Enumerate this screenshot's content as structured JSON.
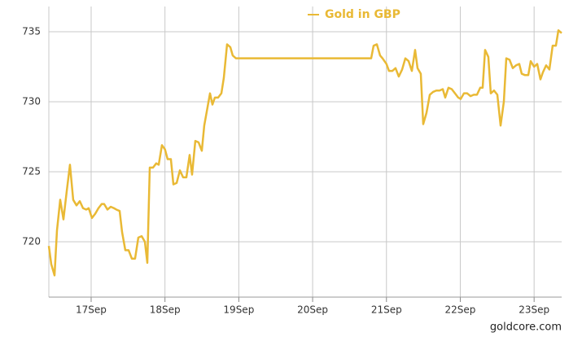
{
  "chart_data": {
    "type": "line",
    "x": [
      16.427,
      16.46,
      16.504,
      16.537,
      16.581,
      16.625,
      16.669,
      16.713,
      16.757,
      16.802,
      16.846,
      16.89,
      16.934,
      16.967,
      17.011,
      17.055,
      17.099,
      17.143,
      17.176,
      17.221,
      17.265,
      17.309,
      17.342,
      17.386,
      17.419,
      17.463,
      17.507,
      17.551,
      17.595,
      17.639,
      17.684,
      17.728,
      17.761,
      17.794,
      17.838,
      17.882,
      17.915,
      17.959,
      18.0,
      18.036,
      18.08,
      18.114,
      18.158,
      18.202,
      18.246,
      18.29,
      18.334,
      18.367,
      18.411,
      18.455,
      18.499,
      18.532,
      18.566,
      18.61,
      18.643,
      18.676,
      18.72,
      18.764,
      18.797,
      18.841,
      18.885,
      18.918,
      18.962,
      19.0,
      20.793,
      20.826,
      20.87,
      20.914,
      20.947,
      21.0,
      21.035,
      21.079,
      21.123,
      21.167,
      21.212,
      21.256,
      21.3,
      21.344,
      21.388,
      21.421,
      21.465,
      21.498,
      21.542,
      21.587,
      21.631,
      21.675,
      21.719,
      21.763,
      21.796,
      21.84,
      21.884,
      21.928,
      21.972,
      22.005,
      22.05,
      22.094,
      22.138,
      22.182,
      22.226,
      22.27,
      22.303,
      22.336,
      22.38,
      22.413,
      22.457,
      22.502,
      22.546,
      22.59,
      22.623,
      22.667,
      22.711,
      22.755,
      22.799,
      22.832,
      22.877,
      22.921,
      22.954,
      23.0,
      23.042,
      23.086,
      23.119,
      23.163,
      23.207,
      23.251,
      23.295,
      23.329,
      23.373
    ],
    "series": [
      {
        "name": "Gold in GBP",
        "color": "#e9b935",
        "values": [
          719.7,
          718.4,
          717.6,
          720.8,
          723.0,
          721.6,
          723.6,
          725.5,
          723.0,
          722.6,
          722.9,
          722.4,
          722.3,
          722.4,
          721.7,
          722.0,
          722.4,
          722.7,
          722.7,
          722.3,
          722.5,
          722.4,
          722.3,
          722.2,
          720.7,
          719.4,
          719.4,
          718.8,
          718.8,
          720.3,
          720.4,
          720.0,
          718.5,
          725.3,
          725.3,
          725.6,
          725.5,
          726.9,
          726.6,
          725.9,
          725.9,
          724.1,
          724.2,
          725.1,
          724.6,
          724.6,
          726.2,
          724.8,
          727.2,
          727.1,
          726.5,
          728.3,
          729.3,
          730.6,
          729.8,
          730.3,
          730.3,
          730.6,
          731.7,
          734.1,
          733.9,
          733.3,
          733.1,
          733.1,
          733.1,
          734.0,
          734.1,
          733.3,
          733.1,
          732.7,
          732.2,
          732.2,
          732.4,
          731.8,
          732.3,
          733.1,
          732.9,
          732.2,
          733.7,
          732.4,
          732.0,
          728.4,
          729.2,
          730.5,
          730.7,
          730.8,
          730.8,
          730.9,
          730.3,
          731.0,
          730.9,
          730.6,
          730.3,
          730.2,
          730.6,
          730.6,
          730.4,
          730.5,
          730.5,
          731.0,
          731.0,
          733.7,
          733.2,
          730.6,
          730.8,
          730.5,
          728.3,
          730.0,
          733.1,
          733.0,
          732.4,
          732.6,
          732.7,
          732.0,
          731.9,
          731.9,
          732.9,
          732.5,
          732.7,
          731.6,
          732.1,
          732.6,
          732.3,
          734.0,
          734.0,
          735.1,
          734.9
        ]
      }
    ],
    "xlim": [
      16.427,
      23.373
    ],
    "xticks": [
      {
        "value": 17,
        "label": "17Sep"
      },
      {
        "value": 18,
        "label": "18Sep"
      },
      {
        "value": 19,
        "label": "19Sep"
      },
      {
        "value": 20,
        "label": "20Sep"
      },
      {
        "value": 21,
        "label": "21Sep"
      },
      {
        "value": 22,
        "label": "22Sep"
      },
      {
        "value": 23,
        "label": "23Sep"
      }
    ],
    "ylim": [
      716.05,
      736.8
    ],
    "yticks": [
      720,
      725,
      730,
      735
    ],
    "grid": true,
    "legend": "top",
    "watermark": "goldcore.com"
  }
}
